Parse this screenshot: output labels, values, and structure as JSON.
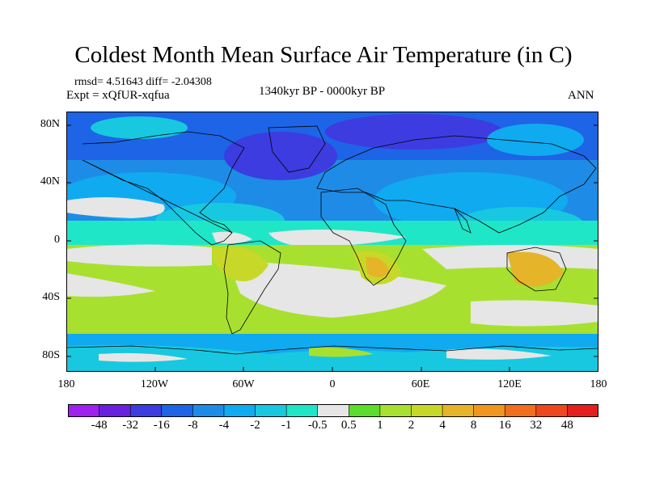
{
  "title": "Coldest Month Mean Surface Air Temperature (in C)",
  "stats": {
    "rmsd_line": "rmsd= 4.51643 diff= -2.04308",
    "expt_line": "Expt = xQfUR-xqfua",
    "period": "1340kyr BP - 0000kyr BP",
    "season": "ANN"
  },
  "map": {
    "projection": "cylindrical equidistant",
    "lat_labels": [
      "80N",
      "40N",
      "0",
      "40S",
      "80S"
    ],
    "lon_labels": [
      "180",
      "120W",
      "60W",
      "0",
      "60E",
      "120E",
      "180"
    ]
  },
  "colorbar": {
    "labels": [
      "-48",
      "-32",
      "-16",
      "-8",
      "-4",
      "-2",
      "-1",
      "-0.5",
      "0.5",
      "1",
      "2",
      "4",
      "8",
      "16",
      "32",
      "48"
    ],
    "colors": [
      "#a020f0",
      "#6a1fe0",
      "#3c3ce0",
      "#1e64e6",
      "#1e8ce6",
      "#10aaf0",
      "#18c8e0",
      "#20e6c8",
      "#e6e6e6",
      "#5cdc2c",
      "#a8e030",
      "#c8d828",
      "#e6b428",
      "#f0961e",
      "#f06e1e",
      "#f0461e",
      "#e61e1e"
    ]
  }
}
